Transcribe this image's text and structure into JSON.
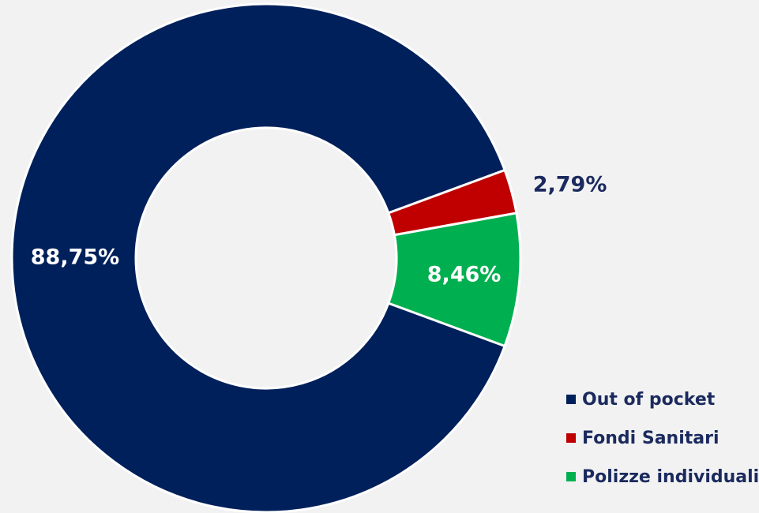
{
  "chart_data": {
    "type": "pie",
    "variant": "donut",
    "categories": [
      "Out of pocket",
      "Fondi Sanitari",
      "Polizze individuali"
    ],
    "values": [
      88.75,
      2.79,
      8.46
    ],
    "data_labels": [
      "88,75%",
      "2,79%",
      "8,46%"
    ],
    "colors": [
      "#00205b",
      "#c00000",
      "#00b050"
    ],
    "label_colors": [
      "#ffffff",
      "#1b2a5e",
      "#ffffff"
    ],
    "legend_position": "bottom-right"
  },
  "legend": {
    "items": [
      {
        "label": "Out of pocket",
        "color": "#00205b"
      },
      {
        "label": "Fondi Sanitari",
        "color": "#c00000"
      },
      {
        "label": "Polizze individuali",
        "color": "#00b050"
      }
    ]
  }
}
